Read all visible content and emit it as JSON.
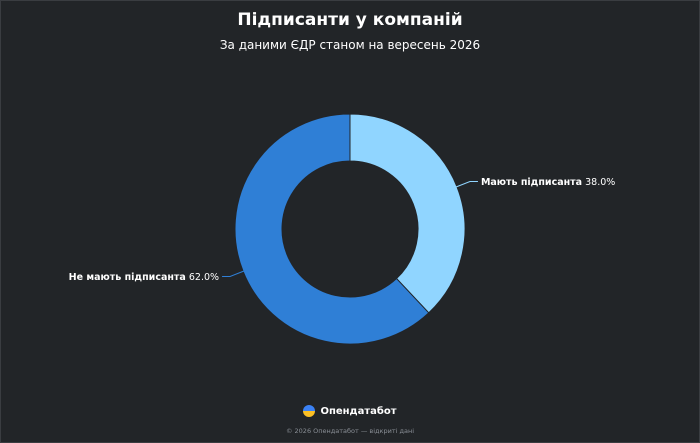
{
  "chart_data": {
    "type": "pie",
    "donut": true,
    "title": "Підписанти у компаній",
    "subtitle": "За даними ЄДР станом на вересень 2026",
    "slices": [
      {
        "label": "Мають підписанта",
        "value": 38.0,
        "display": "38.0%",
        "color": "#90d5ff"
      },
      {
        "label": "Не мають підписанта",
        "value": 62.0,
        "display": "62.0%",
        "color": "#2f7fd6"
      }
    ]
  },
  "footer": {
    "brand": "Опендатабот",
    "copyright": "© 2026 Опендатабот — відкриті дані"
  }
}
